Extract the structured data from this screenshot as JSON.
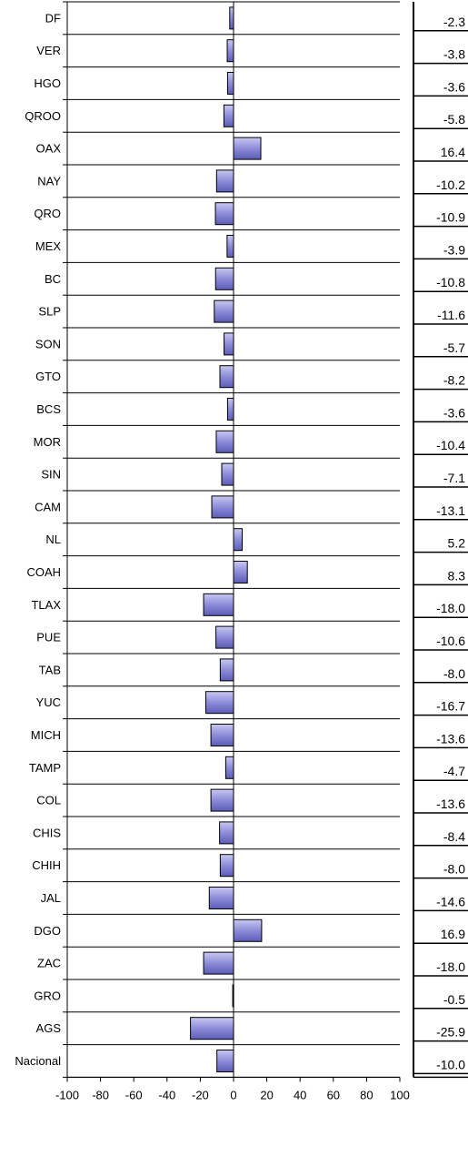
{
  "chart_data": {
    "type": "bar",
    "orientation": "horizontal",
    "categories": [
      "DF",
      "VER",
      "HGO",
      "QROO",
      "OAX",
      "NAY",
      "QRO",
      "MEX",
      "BC",
      "SLP",
      "SON",
      "GTO",
      "BCS",
      "MOR",
      "SIN",
      "CAM",
      "NL",
      "COAH",
      "TLAX",
      "PUE",
      "TAB",
      "YUC",
      "MICH",
      "TAMP",
      "COL",
      "CHIS",
      "CHIH",
      "JAL",
      "DGO",
      "ZAC",
      "GRO",
      "AGS",
      "Nacional"
    ],
    "values": [
      -2.3,
      -3.8,
      -3.6,
      -5.8,
      16.4,
      -10.2,
      -10.9,
      -3.9,
      -10.8,
      -11.6,
      -5.7,
      -8.2,
      -3.6,
      -10.4,
      -7.1,
      -13.1,
      5.2,
      8.3,
      -18.0,
      -10.6,
      -8.0,
      -16.7,
      -13.6,
      -4.7,
      -13.6,
      -8.4,
      -8.0,
      -14.6,
      16.9,
      -18.0,
      -0.5,
      -25.9,
      -10.0
    ],
    "value_labels": [
      "-2.3",
      "-3.8",
      "-3.6",
      "-5.8",
      "16.4",
      "-10.2",
      "-10.9",
      "-3.9",
      "-10.8",
      "-11.6",
      "-5.7",
      "-8.2",
      "-3.6",
      "-10.4",
      "-7.1",
      "-13.1",
      "5.2",
      "8.3",
      "-18.0",
      "-10.6",
      "-8.0",
      "-16.7",
      "-13.6",
      "-4.7",
      "-13.6",
      "-8.4",
      "-8.0",
      "-14.6",
      "16.9",
      "-18.0",
      "-0.5",
      "-25.9",
      "-10.0"
    ],
    "xlim": [
      -100,
      100
    ],
    "x_ticks": [
      "-100",
      "-80",
      "-60",
      "-40",
      "-20",
      "0",
      "20",
      "40",
      "60",
      "80",
      "100"
    ],
    "title": "",
    "xlabel": "",
    "ylabel": "",
    "grid": "horizontal row separators",
    "bar_color": "#8c8cd8",
    "bar_gradient_light": "#c8c8f2",
    "bar_gradient_dark": "#5c5cb8"
  }
}
